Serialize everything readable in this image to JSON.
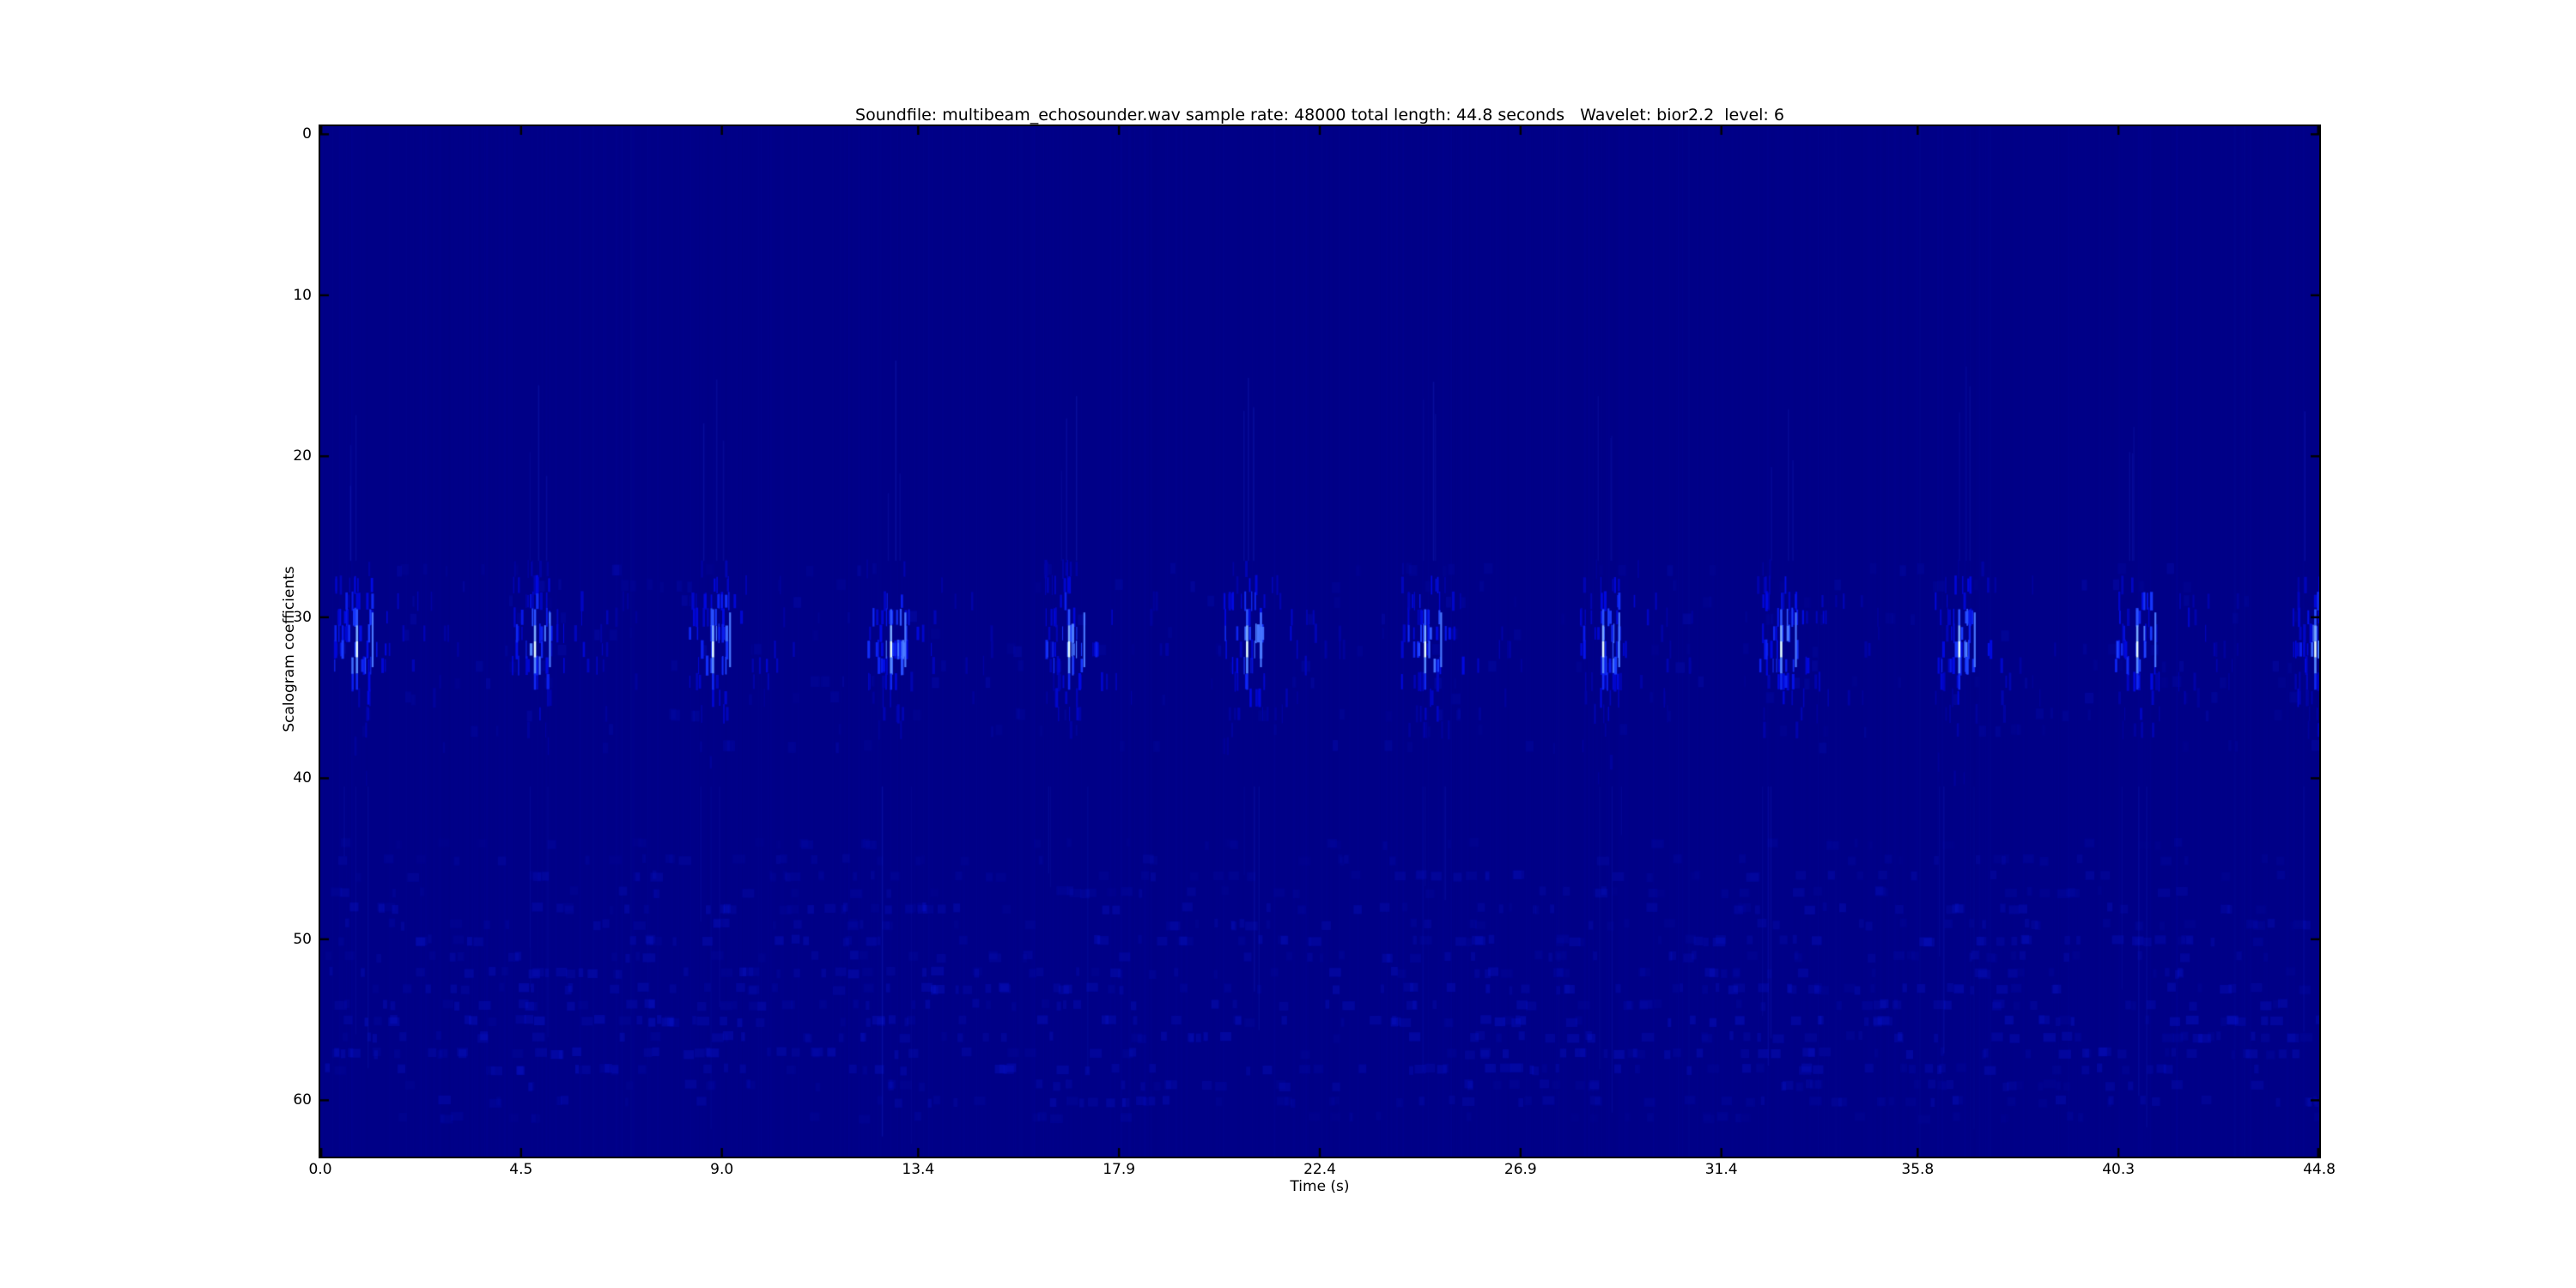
{
  "page": {
    "background": "#ffffff"
  },
  "chart_data": {
    "type": "heatmap",
    "title": "Soundfile: multibeam_echosounder.wav sample rate: 48000 total length: 44.8 seconds   Wavelet: bior2.2  level: 6",
    "soundfile": "multibeam_echosounder.wav",
    "sample_rate": 48000,
    "total_length_seconds": 44.8,
    "wavelet": "bior2.2",
    "level": 6,
    "xlabel": "Time (s)",
    "ylabel": "Scalogram coefficients",
    "x_ticks": [
      "0.0",
      "4.5",
      "9.0",
      "13.4",
      "17.9",
      "22.4",
      "26.9",
      "31.4",
      "35.8",
      "40.3",
      "44.8"
    ],
    "y_ticks": [
      "0",
      "10",
      "20",
      "30",
      "40",
      "50",
      "60"
    ],
    "x_range_s": [
      0.0,
      44.8
    ],
    "y_rows": 64,
    "grid": false,
    "legend": "none",
    "tick_direction": "in",
    "colors": {
      "background": "#000087",
      "frame": "#000000",
      "stops": [
        [
          0.0,
          [
            0,
            0,
            135
          ]
        ],
        [
          0.4,
          [
            0,
            8,
            225
          ]
        ],
        [
          0.65,
          [
            25,
            60,
            255
          ]
        ],
        [
          0.85,
          [
            95,
            150,
            255
          ]
        ],
        [
          1.0,
          [
            225,
            252,
            255
          ]
        ]
      ]
    },
    "ping_times_s": [
      0.82,
      4.81,
      8.8,
      12.79,
      16.78,
      20.77,
      24.76,
      28.75,
      32.74,
      36.73,
      40.72,
      44.71
    ],
    "ping_period_s": 3.99,
    "band": {
      "rows_span": [
        27,
        40
      ],
      "row_weights": {
        "27": 0.28,
        "28": 0.5,
        "29": 0.72,
        "30": 0.82,
        "31": 0.95,
        "32": 1.0,
        "33": 0.9,
        "34": 0.62,
        "35": 0.46,
        "36": 0.32,
        "37": 0.22,
        "38": 0.16,
        "39": 0.12,
        "40": 0.1
      },
      "peak_rows": {
        "30": 0.7,
        "31": 0.88,
        "32": 1.0,
        "33": 0.82,
        "34": 0.55
      },
      "lines_per_ping": 85,
      "second_pulse_offset_s": 0.33
    },
    "speckle": {
      "rows_span": [
        44,
        61
      ],
      "row_weights": {
        "44": 0.3,
        "45": 0.38,
        "46": 0.48,
        "47": 0.42,
        "48": 0.58,
        "49": 0.5,
        "50": 0.62,
        "51": 0.52,
        "52": 0.6,
        "53": 0.68,
        "54": 0.6,
        "55": 0.72,
        "56": 0.62,
        "57": 0.68,
        "58": 0.62,
        "59": 0.5,
        "60": 0.55,
        "61": 0.3
      },
      "base_count": 120
    }
  }
}
